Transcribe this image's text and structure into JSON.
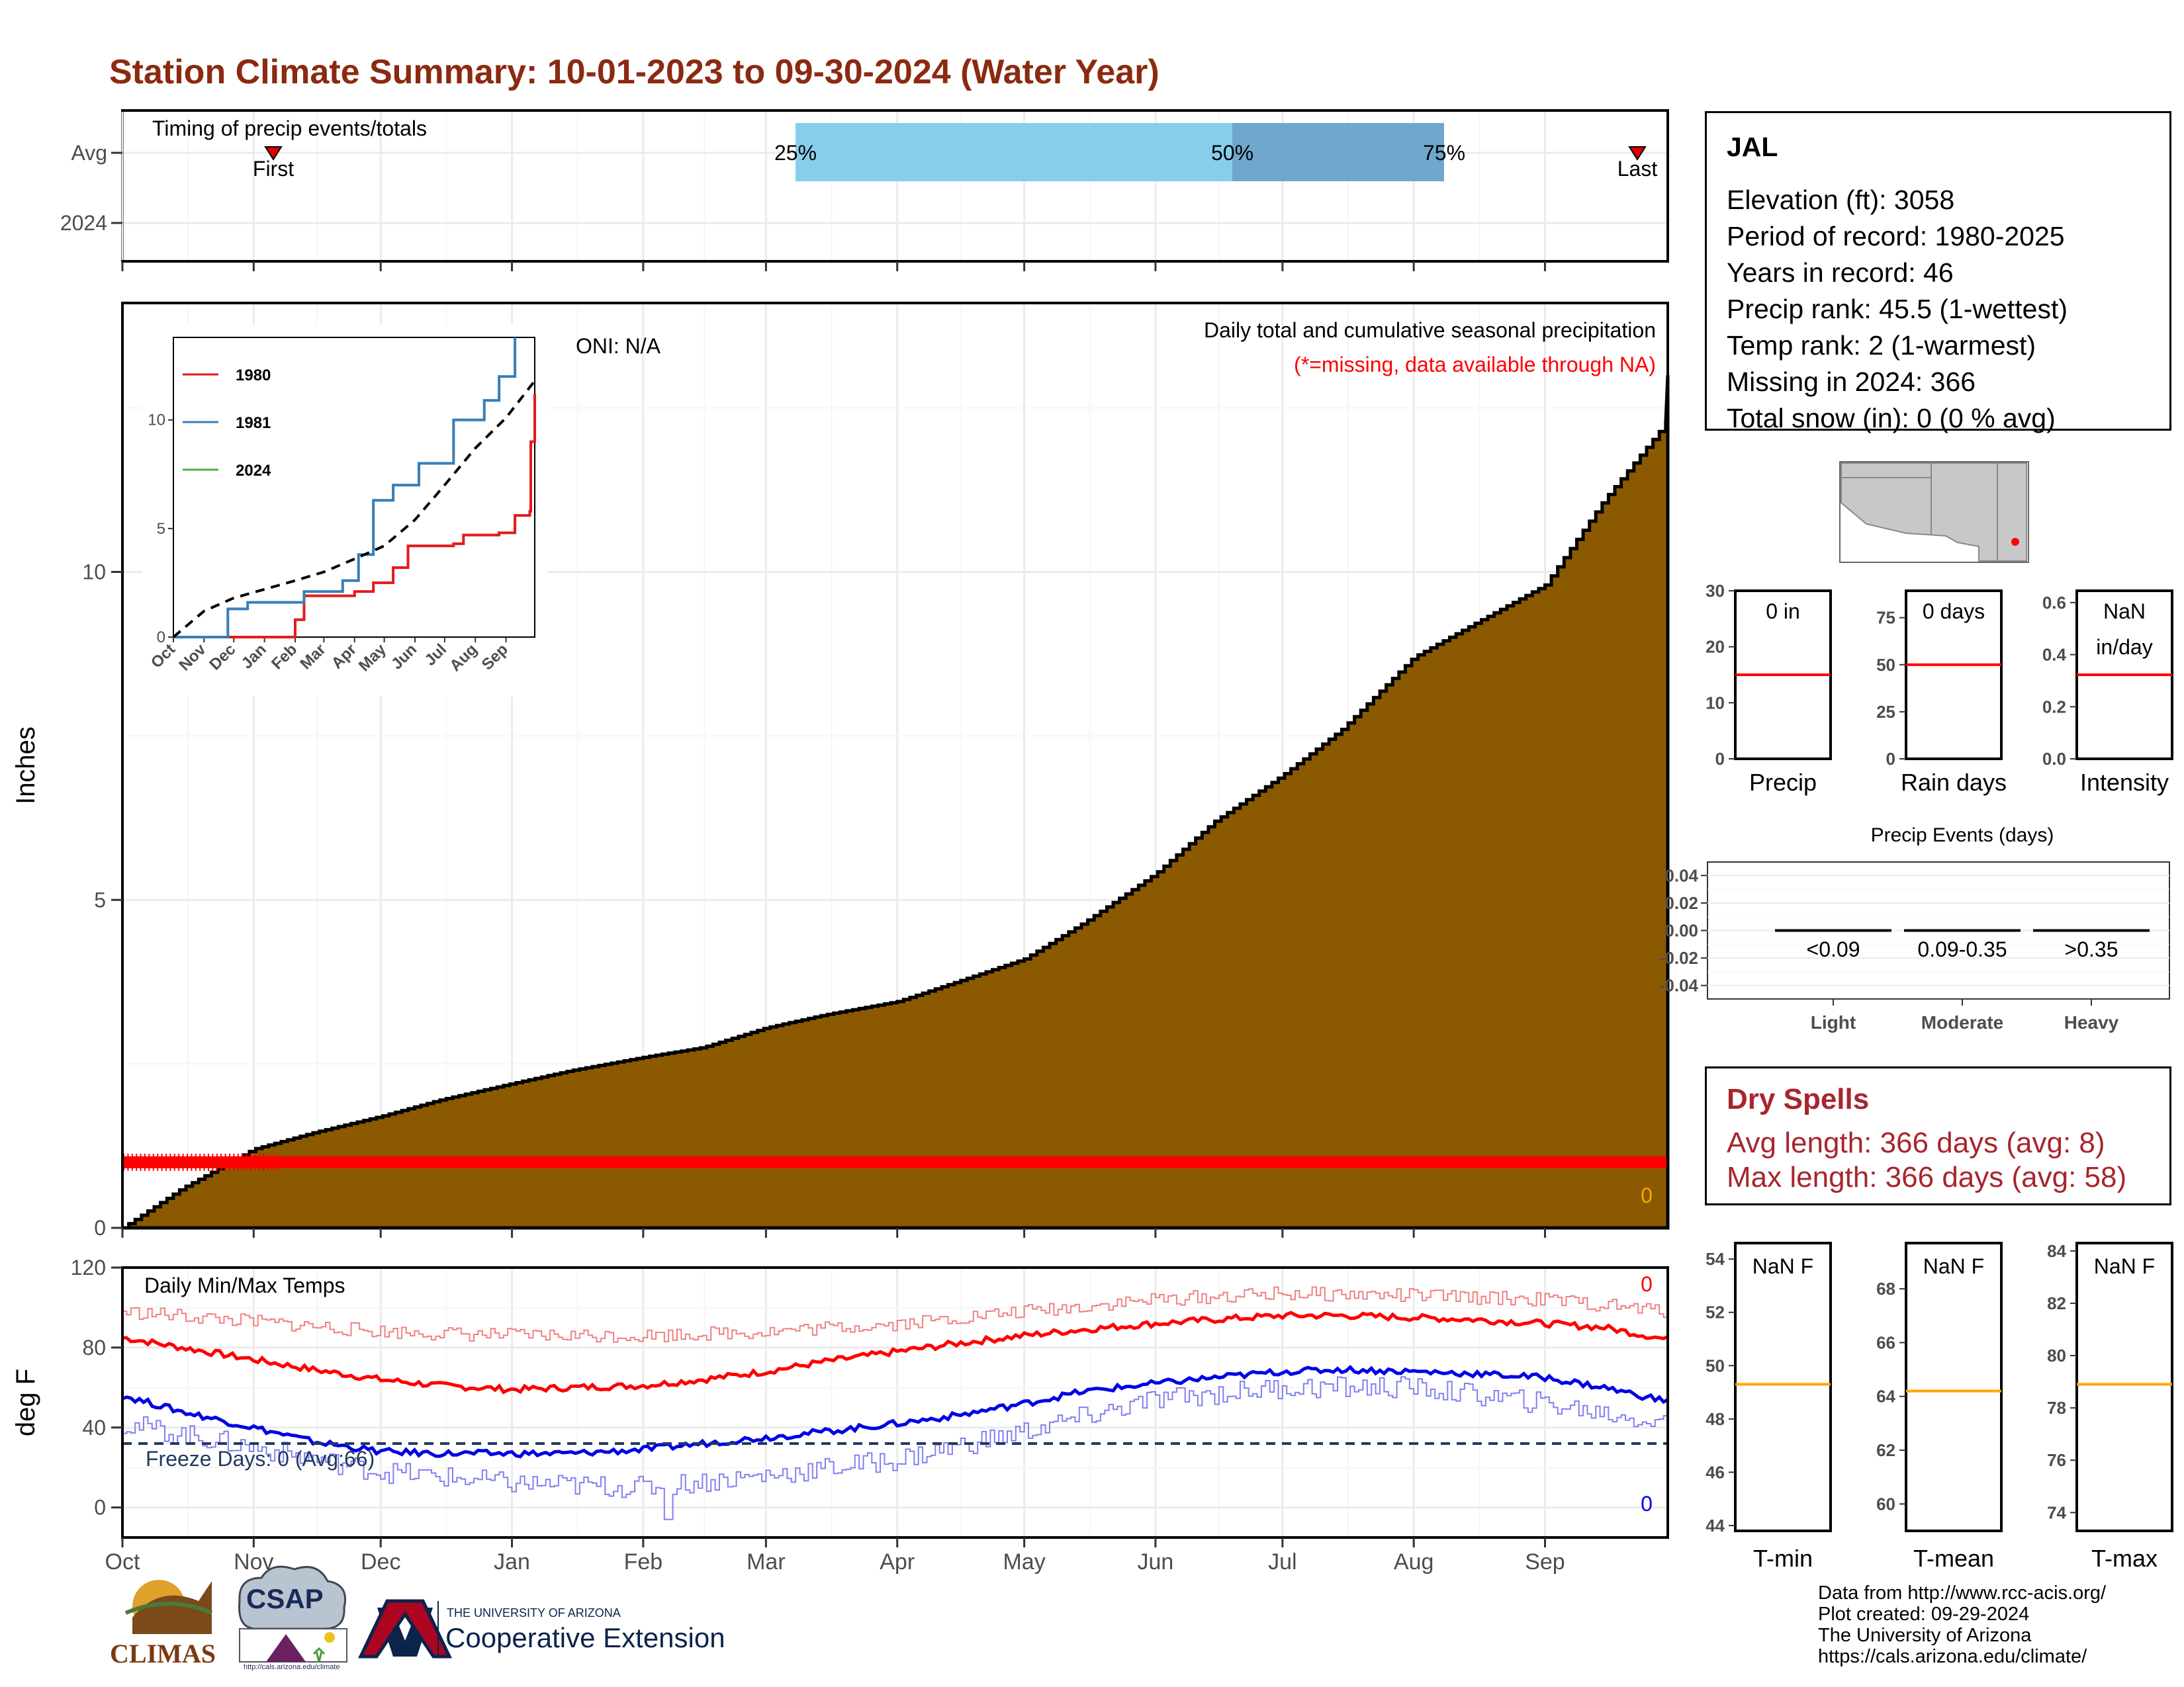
{
  "title": "Station Climate Summary: 10-01-2023 to 09-30-2024 (Water Year)",
  "colors": {
    "title": "#8b2a10",
    "precip_fill": "#8b5a00",
    "missing_marker": "#ff0000",
    "quartile_light": "#87ceeb",
    "quartile_dark": "#6fa7cd",
    "dry_spells": "#a7262d",
    "tmax_avg": "#ff0000",
    "tmin_avg": "#0000e6",
    "freeze_line": "#1f3a5f",
    "orange": "#ffa500"
  },
  "timing_panel": {
    "label": "Timing of precip events/totals",
    "y_labels": [
      "Avg",
      "2024"
    ],
    "quartile_labels": [
      "25%",
      "50%",
      "75%"
    ],
    "first_label": "First",
    "last_label": "Last"
  },
  "station": {
    "name": "JAL",
    "lines": [
      "Elevation (ft): 3058",
      "Period of record: 1980-2025",
      "Years in record: 46",
      "Precip rank: 45.5 (1-wettest)",
      "Temp rank: 2 (1-warmest)",
      "Missing in 2024: 366",
      "Total snow (in): 0 (0 % avg)"
    ]
  },
  "precip_panel": {
    "y_label": "Inches",
    "header_line1": "Daily total and cumulative seasonal precipitation",
    "header_line2": "(*=missing, data available through NA)",
    "oni": "ONI: N/A",
    "current_value_label": "0",
    "y_ticks": [
      "0",
      "5",
      "10"
    ]
  },
  "temp_panel": {
    "y_label": "deg F",
    "title": "Daily Min/Max Temps",
    "freeze_label": "Freeze Days: 0 (Avg:66)",
    "tmax_count": "0",
    "tmin_count": "0",
    "y_ticks": [
      "0",
      "40",
      "80",
      "120"
    ]
  },
  "months": [
    "Oct",
    "Nov",
    "Dec",
    "Jan",
    "Feb",
    "Mar",
    "Apr",
    "May",
    "Jun",
    "Jul",
    "Aug",
    "Sep"
  ],
  "inset": {
    "legend": [
      "1980",
      "1981",
      "2024"
    ],
    "legend_colors": [
      "#e41a1c",
      "#377eb8",
      "#4daf4a"
    ],
    "y_ticks": [
      "0",
      "5",
      "10"
    ],
    "months": [
      "Oct",
      "Nov",
      "Dec",
      "Jan",
      "Feb",
      "Mar",
      "Apr",
      "May",
      "Jun",
      "Jul",
      "Aug",
      "Sep"
    ]
  },
  "small_bars": [
    {
      "label": "Precip",
      "value_text": "0 in",
      "ticks": [
        "0",
        "10",
        "20",
        "30"
      ],
      "avg_fraction": 0.5
    },
    {
      "label": "Rain days",
      "value_text": "0 days",
      "ticks": [
        "0",
        "25",
        "50",
        "75"
      ],
      "avg_fraction": 0.56
    },
    {
      "label": "Intensity",
      "value_text": "NaN\nin/day",
      "ticks": [
        "0.0",
        "0.2",
        "0.4",
        "0.6"
      ],
      "avg_fraction": 0.5
    }
  ],
  "precip_events": {
    "title": "Precip Events (days)",
    "y_ticks": [
      "0.04",
      "0.02",
      "0.00",
      "-0.02",
      "-0.04"
    ],
    "categories": [
      "Light",
      "Moderate",
      "Heavy"
    ],
    "ranges": [
      "<0.09",
      "0.09-0.35",
      ">0.35"
    ],
    "values": [
      0,
      0,
      0
    ]
  },
  "dry_spells": {
    "title": "Dry Spells",
    "avg_length": "Avg length: 366 days (avg: 8)",
    "max_length": "Max length: 366 days (avg: 58)"
  },
  "temp_bars": [
    {
      "label": "T-min",
      "value_text": "NaN F",
      "ticks": [
        "44",
        "46",
        "48",
        "50",
        "52",
        "54"
      ],
      "avg_value": 49.3,
      "range": [
        43.8,
        54.6
      ]
    },
    {
      "label": "T-mean",
      "value_text": "NaN F",
      "ticks": [
        "60",
        "62",
        "64",
        "66",
        "68"
      ],
      "avg_value": 64.2,
      "range": [
        59.0,
        69.7
      ]
    },
    {
      "label": "T-max",
      "value_text": "NaN F",
      "ticks": [
        "74",
        "76",
        "78",
        "80",
        "82",
        "84"
      ],
      "avg_value": 78.9,
      "range": [
        73.3,
        84.3
      ]
    }
  ],
  "footer": [
    "Data from http://www.rcc-acis.org/",
    "Plot created: 09-29-2024",
    "The University of Arizona",
    "https://cals.arizona.edu/climate/"
  ],
  "logos": {
    "climas": "CLIMAS",
    "csap": "CSAP",
    "csap_url": "http://cals.arizona.edu/climate",
    "ua_line1": "THE UNIVERSITY OF ARIZONA",
    "ua_line2": "Cooperative Extension"
  },
  "chart_data": [
    {
      "type": "area",
      "title": "Daily total and cumulative seasonal precipitation",
      "ylabel": "Inches",
      "xlim": [
        "2023-10-01",
        "2024-09-30"
      ],
      "ylim": [
        0,
        14.1
      ],
      "series": [
        {
          "name": "Average cumulative precipitation",
          "x": [
            "2023-10-01",
            "2023-10-15",
            "2023-11-01",
            "2023-11-15",
            "2023-12-01",
            "2023-12-15",
            "2024-01-01",
            "2024-01-15",
            "2024-02-01",
            "2024-02-15",
            "2024-03-01",
            "2024-03-15",
            "2024-04-01",
            "2024-04-15",
            "2024-05-01",
            "2024-05-15",
            "2024-06-01",
            "2024-06-15",
            "2024-07-01",
            "2024-07-15",
            "2024-08-01",
            "2024-08-15",
            "2024-09-01",
            "2024-09-15",
            "2024-09-30"
          ],
          "values": [
            0.0,
            0.6,
            1.2,
            1.45,
            1.7,
            1.95,
            2.2,
            2.4,
            2.6,
            2.75,
            3.05,
            3.25,
            3.45,
            3.75,
            4.1,
            4.65,
            5.4,
            6.2,
            6.9,
            7.6,
            8.7,
            9.2,
            9.8,
            11.1,
            12.3
          ]
        }
      ],
      "missing_marker_value": 1.0
    },
    {
      "type": "line",
      "title": "Daily Min/Max Temps",
      "ylabel": "deg F",
      "ylim": [
        -15,
        120
      ],
      "freeze_threshold": 32,
      "series": [
        {
          "name": "Avg Tmax",
          "x": [
            "2023-10-01",
            "2023-10-15",
            "2023-11-01",
            "2023-11-15",
            "2023-12-01",
            "2023-12-15",
            "2024-01-01",
            "2024-01-15",
            "2024-02-01",
            "2024-02-15",
            "2024-03-01",
            "2024-03-15",
            "2024-04-01",
            "2024-04-15",
            "2024-05-01",
            "2024-05-15",
            "2024-06-01",
            "2024-06-15",
            "2024-07-01",
            "2024-07-15",
            "2024-08-01",
            "2024-08-15",
            "2024-09-01",
            "2024-09-15",
            "2024-09-30"
          ],
          "values": [
            85,
            80,
            74,
            69,
            64,
            61,
            59,
            60,
            61,
            64,
            68,
            73,
            78,
            82,
            86,
            89,
            92,
            94,
            96,
            96,
            95,
            94,
            92,
            90,
            84
          ]
        },
        {
          "name": "Avg Tmin",
          "x": [
            "2023-10-01",
            "2023-10-15",
            "2023-11-01",
            "2023-11-15",
            "2023-12-01",
            "2023-12-15",
            "2024-01-01",
            "2024-01-15",
            "2024-02-01",
            "2024-02-15",
            "2024-03-01",
            "2024-03-15",
            "2024-04-01",
            "2024-04-15",
            "2024-05-01",
            "2024-05-15",
            "2024-06-01",
            "2024-06-15",
            "2024-07-01",
            "2024-07-15",
            "2024-08-01",
            "2024-08-15",
            "2024-09-01",
            "2024-09-15",
            "2024-09-30"
          ],
          "values": [
            56,
            48,
            40,
            33,
            28,
            27,
            27,
            27,
            29,
            32,
            35,
            38,
            42,
            46,
            52,
            58,
            62,
            65,
            68,
            69,
            68,
            67,
            65,
            60,
            53
          ]
        },
        {
          "name": "Record-range Tmax",
          "x": [
            "2023-10-01",
            "2023-11-01",
            "2023-12-01",
            "2024-01-01",
            "2024-02-01",
            "2024-03-01",
            "2024-04-01",
            "2024-05-01",
            "2024-06-01",
            "2024-07-01",
            "2024-08-01",
            "2024-09-01",
            "2024-09-30"
          ],
          "values": [
            98,
            93,
            88,
            86,
            86,
            88,
            92,
            98,
            104,
            107,
            106,
            104,
            98
          ]
        },
        {
          "name": "Record-range Tmin",
          "x": [
            "2023-10-01",
            "2023-11-01",
            "2023-12-01",
            "2024-01-01",
            "2024-02-01",
            "2024-03-01",
            "2024-04-01",
            "2024-05-01",
            "2024-06-01",
            "2024-07-01",
            "2024-08-01",
            "2024-09-01",
            "2024-09-30"
          ],
          "values": [
            42,
            30,
            18,
            12,
            10,
            16,
            24,
            38,
            54,
            60,
            60,
            52,
            42
          ]
        }
      ]
    },
    {
      "type": "line",
      "title": "",
      "ylim": [
        0,
        13.8
      ],
      "series": [
        {
          "name": "1980",
          "x": [
            "2023-10-01",
            "2024-01-20",
            "2024-02-01",
            "2024-02-10",
            "2024-04-01",
            "2024-04-20",
            "2024-05-10",
            "2024-05-25",
            "2024-07-10",
            "2024-07-20",
            "2024-08-25",
            "2024-09-10",
            "2024-09-25",
            "2024-09-26",
            "2024-09-30"
          ],
          "values": [
            0.0,
            0.0,
            0.8,
            1.9,
            2.1,
            2.5,
            3.2,
            4.2,
            4.3,
            4.7,
            4.8,
            5.6,
            5.8,
            9.0,
            11.2
          ]
        },
        {
          "name": "1981",
          "x": [
            "2023-10-01",
            "2023-11-10",
            "2023-11-25",
            "2023-12-15",
            "2024-02-10",
            "2024-03-20",
            "2024-04-05",
            "2024-04-20",
            "2024-05-10",
            "2024-06-05",
            "2024-07-10",
            "2024-08-10",
            "2024-08-25",
            "2024-09-10"
          ],
          "values": [
            0.0,
            0.0,
            1.3,
            1.6,
            2.1,
            2.6,
            3.8,
            6.3,
            7.0,
            8.0,
            10.0,
            10.9,
            12.0,
            13.8
          ]
        },
        {
          "name": "2024",
          "x": [],
          "values": []
        },
        {
          "name": "Average",
          "x": [
            "2023-10-01",
            "2023-11-01",
            "2023-12-01",
            "2024-01-01",
            "2024-02-01",
            "2024-03-01",
            "2024-04-01",
            "2024-05-01",
            "2024-06-01",
            "2024-07-01",
            "2024-08-01",
            "2024-09-01",
            "2024-09-30"
          ],
          "values": [
            0.0,
            1.2,
            1.8,
            2.2,
            2.6,
            3.0,
            3.6,
            4.2,
            5.4,
            7.0,
            8.7,
            10.1,
            11.8
          ]
        }
      ]
    },
    {
      "type": "bar",
      "title": "Precip Events (days)",
      "categories": [
        "Light",
        "Moderate",
        "Heavy"
      ],
      "values": [
        0,
        0,
        0
      ],
      "ylim": [
        -0.05,
        0.05
      ]
    }
  ]
}
